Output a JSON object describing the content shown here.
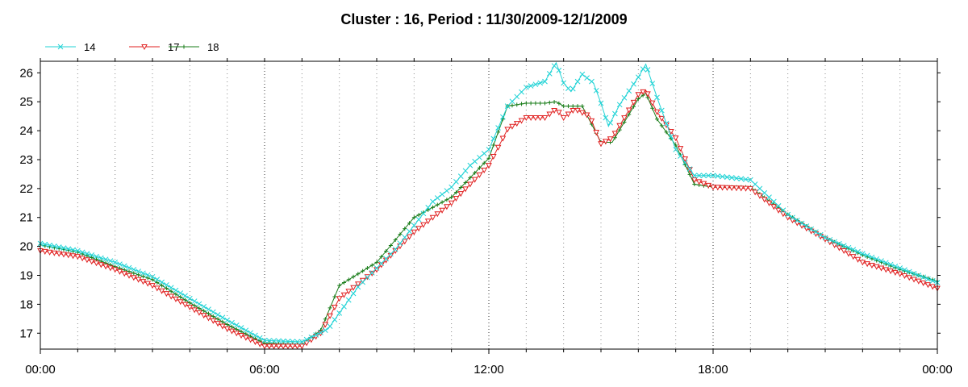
{
  "chart_data": {
    "type": "line",
    "title": "Cluster : 16, Period : 11/30/2009-12/1/2009",
    "xlabel": "",
    "ylabel": "",
    "x_ticks": [
      "00:00",
      "06:00",
      "12:00",
      "18:00",
      "00:00"
    ],
    "xlim_hours": [
      0,
      24
    ],
    "ylim": [
      16.45,
      26.4
    ],
    "y_ticks": [
      17,
      18,
      19,
      20,
      21,
      22,
      23,
      24,
      25,
      26
    ],
    "grid": "vertical dotted lines at every hour, darker at 6-hour marks",
    "legend_position": "top-left",
    "series": [
      {
        "name": "14",
        "color": "#22d3d6",
        "marker": "x",
        "points": [
          [
            0,
            20.1
          ],
          [
            1,
            19.85
          ],
          [
            2,
            19.45
          ],
          [
            3,
            18.95
          ],
          [
            4,
            18.2
          ],
          [
            5,
            17.45
          ],
          [
            6,
            16.75
          ],
          [
            7,
            16.7
          ],
          [
            7.7,
            17.15
          ],
          [
            8.5,
            18.6
          ],
          [
            9.5,
            19.9
          ],
          [
            10.5,
            21.55
          ],
          [
            11,
            22.05
          ],
          [
            11.5,
            22.8
          ],
          [
            12,
            23.35
          ],
          [
            12.5,
            24.85
          ],
          [
            13,
            25.5
          ],
          [
            13.5,
            25.7
          ],
          [
            13.8,
            26.35
          ],
          [
            14,
            25.65
          ],
          [
            14.2,
            25.35
          ],
          [
            14.5,
            25.95
          ],
          [
            14.8,
            25.65
          ],
          [
            15,
            24.95
          ],
          [
            15.2,
            24.15
          ],
          [
            15.5,
            24.9
          ],
          [
            16,
            25.85
          ],
          [
            16.2,
            26.3
          ],
          [
            16.5,
            25.15
          ],
          [
            17,
            23.35
          ],
          [
            17.5,
            22.45
          ],
          [
            18,
            22.45
          ],
          [
            19,
            22.3
          ],
          [
            20,
            21.1
          ],
          [
            21,
            20.3
          ],
          [
            22,
            19.75
          ],
          [
            23,
            19.25
          ],
          [
            24,
            18.75
          ]
        ]
      },
      {
        "name": "17",
        "color": "#e02020",
        "marker": "triangle-down",
        "points": [
          [
            0,
            19.85
          ],
          [
            1,
            19.65
          ],
          [
            2,
            19.2
          ],
          [
            3,
            18.65
          ],
          [
            4,
            17.9
          ],
          [
            5,
            17.15
          ],
          [
            6,
            16.55
          ],
          [
            7,
            16.55
          ],
          [
            7.5,
            17.0
          ],
          [
            8,
            18.2
          ],
          [
            9,
            19.2
          ],
          [
            10,
            20.5
          ],
          [
            11,
            21.5
          ],
          [
            12,
            22.8
          ],
          [
            12.5,
            24.05
          ],
          [
            13,
            24.45
          ],
          [
            13.5,
            24.45
          ],
          [
            13.8,
            24.75
          ],
          [
            14,
            24.45
          ],
          [
            14.3,
            24.75
          ],
          [
            14.7,
            24.5
          ],
          [
            15,
            23.55
          ],
          [
            15.3,
            23.75
          ],
          [
            16,
            25.25
          ],
          [
            16.2,
            25.4
          ],
          [
            16.5,
            24.65
          ],
          [
            17,
            23.75
          ],
          [
            17.5,
            22.3
          ],
          [
            18,
            22.05
          ],
          [
            19,
            22.0
          ],
          [
            20,
            21.0
          ],
          [
            21,
            20.25
          ],
          [
            22,
            19.45
          ],
          [
            23,
            19.05
          ],
          [
            24,
            18.55
          ]
        ]
      },
      {
        "name": "18",
        "color": "#1a7d1a",
        "marker": "tick",
        "points": [
          [
            0,
            20.05
          ],
          [
            1,
            19.8
          ],
          [
            2,
            19.3
          ],
          [
            3,
            18.85
          ],
          [
            4,
            18.05
          ],
          [
            5,
            17.3
          ],
          [
            6,
            16.65
          ],
          [
            7,
            16.6
          ],
          [
            7.5,
            17.1
          ],
          [
            8,
            18.65
          ],
          [
            9,
            19.45
          ],
          [
            10,
            21.0
          ],
          [
            11,
            21.7
          ],
          [
            12,
            23.05
          ],
          [
            12.5,
            24.85
          ],
          [
            13,
            24.95
          ],
          [
            13.5,
            24.95
          ],
          [
            13.8,
            25.0
          ],
          [
            14,
            24.85
          ],
          [
            14.5,
            24.85
          ],
          [
            15,
            23.6
          ],
          [
            15.3,
            23.6
          ],
          [
            16,
            25.1
          ],
          [
            16.2,
            25.3
          ],
          [
            16.5,
            24.4
          ],
          [
            17,
            23.5
          ],
          [
            17.5,
            22.15
          ],
          [
            18,
            22.05
          ],
          [
            19,
            22.05
          ],
          [
            20,
            21.1
          ],
          [
            21,
            20.3
          ],
          [
            22,
            19.7
          ],
          [
            23,
            19.2
          ],
          [
            24,
            18.8
          ]
        ]
      }
    ]
  }
}
